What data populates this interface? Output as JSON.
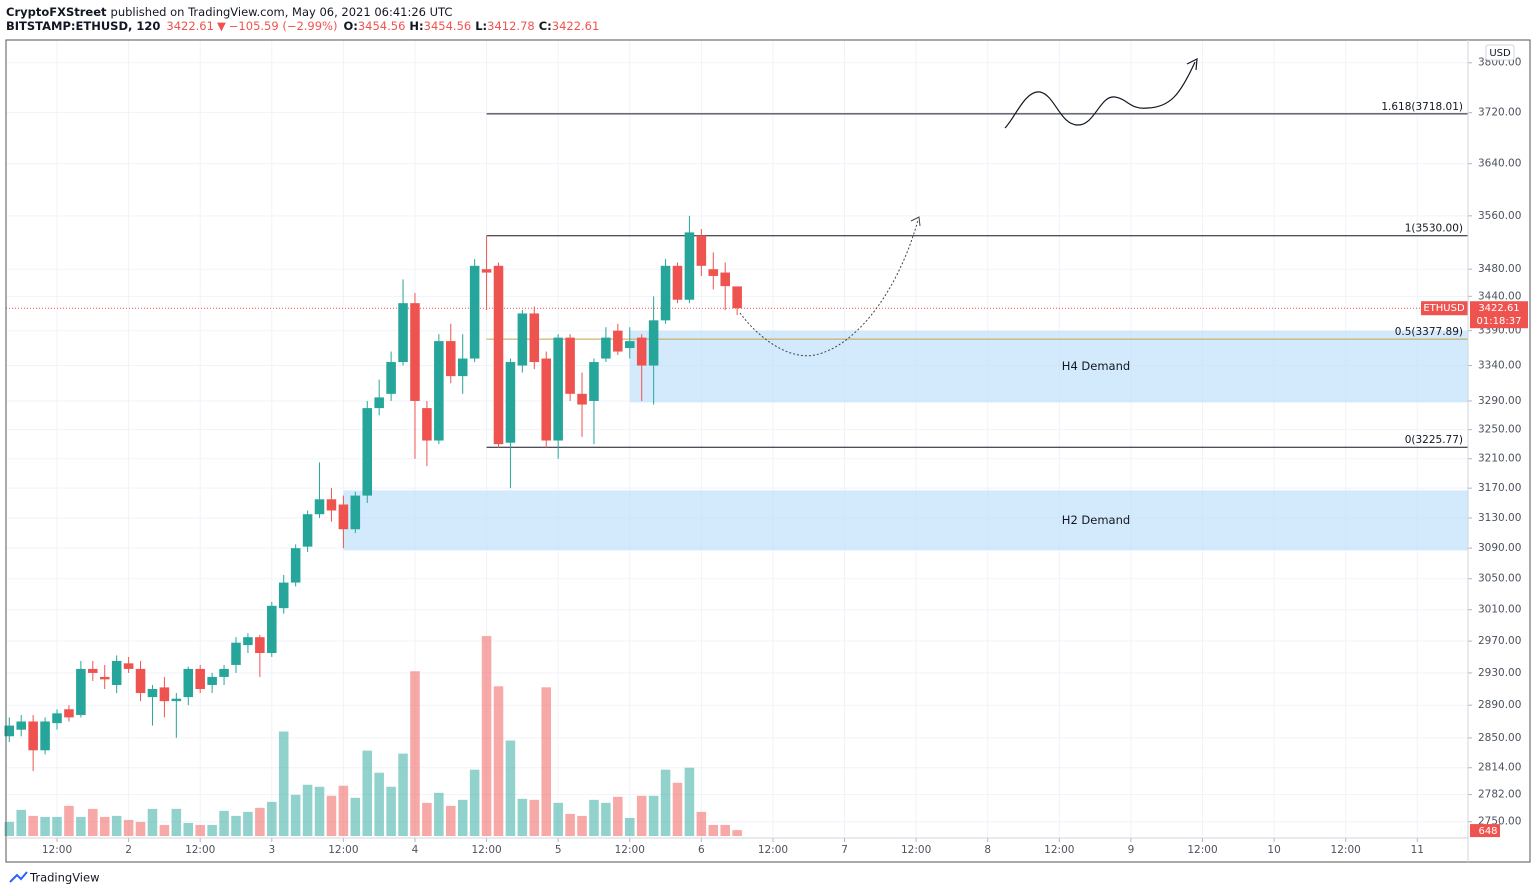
{
  "chart_data": {
    "type": "candlestick",
    "header": {
      "publisher": "CryptoFXStreet",
      "published": "published on TradingView.com, May 06, 2021 06:41:26 UTC",
      "symbol": "BITSTAMP:ETHUSD, 120",
      "last": 3422.61,
      "arrow": "▼",
      "change": "−105.59 (−2.99%)",
      "o_label": "O:",
      "open": 3454.56,
      "h_label": "H:",
      "high": 3454.56,
      "l_label": "L:",
      "low": 3412.78,
      "c_label": "C:",
      "close": 3422.61
    },
    "currency": "USD",
    "footer": "TradingView",
    "up_color": "#26a69a",
    "down_color": "#ef5350",
    "log_scale": true,
    "grid": true,
    "x": [
      4,
      6,
      8,
      10,
      12,
      14,
      16,
      18,
      20,
      22,
      24,
      26,
      28,
      30,
      32,
      34,
      36,
      38,
      40,
      42,
      44,
      46,
      48,
      50,
      52,
      54,
      56,
      58,
      60,
      62,
      64,
      66,
      68,
      70,
      72,
      74,
      76,
      78,
      80,
      82,
      84,
      86,
      88,
      90,
      92,
      94,
      96,
      98,
      100,
      102,
      104,
      106,
      108,
      110,
      112,
      114,
      116,
      118,
      120,
      122,
      124,
      126
    ],
    "open": [
      2852,
      2860,
      2870,
      2835,
      2868,
      2885,
      2878,
      2935,
      2925,
      2915,
      2942,
      2935,
      2900,
      2912,
      2895,
      2900,
      2935,
      2915,
      2925,
      2940,
      2965,
      2975,
      2955,
      3012,
      3045,
      3092,
      3135,
      3155,
      3148,
      3115,
      3160,
      3280,
      3300,
      3345,
      3430,
      3280,
      3235,
      3375,
      3325,
      3350,
      3480,
      3485,
      3232,
      3340,
      3415,
      3350,
      3235,
      3380,
      3300,
      3290,
      3350,
      3390,
      3365,
      3380,
      3340,
      3405,
      3485,
      3435,
      3530,
      3480,
      3475,
      3454.56
    ],
    "high": [
      2875,
      2878,
      2878,
      2875,
      2885,
      2890,
      2945,
      2945,
      2940,
      2952,
      2950,
      2945,
      2915,
      2925,
      2905,
      2938,
      2940,
      2930,
      2940,
      2975,
      2980,
      2978,
      3020,
      3055,
      3095,
      3140,
      3205,
      3170,
      3160,
      3165,
      3290,
      3320,
      3360,
      3465,
      3445,
      3290,
      3385,
      3400,
      3385,
      3495,
      3530,
      3490,
      3350,
      3420,
      3425,
      3360,
      3385,
      3385,
      3330,
      3350,
      3395,
      3400,
      3395,
      3385,
      3440,
      3495,
      3490,
      3560,
      3540,
      3505,
      3490,
      3454.56
    ],
    "low": [
      2845,
      2852,
      2810,
      2830,
      2860,
      2870,
      2875,
      2920,
      2910,
      2905,
      2930,
      2895,
      2865,
      2875,
      2850,
      2890,
      2905,
      2905,
      2915,
      2930,
      2955,
      2925,
      2950,
      3005,
      3040,
      3085,
      3130,
      3125,
      3090,
      3110,
      3150,
      3270,
      3290,
      3340,
      3210,
      3200,
      3230,
      3315,
      3300,
      3345,
      3420,
      3225,
      3170,
      3330,
      3335,
      3225,
      3210,
      3290,
      3240,
      3230,
      3345,
      3355,
      3350,
      3290,
      3285,
      3400,
      3430,
      3430,
      3470,
      3450,
      3420,
      3412.78
    ],
    "close": [
      2865,
      2870,
      2835,
      2870,
      2880,
      2875,
      2935,
      2930,
      2922,
      2945,
      2935,
      2905,
      2910,
      2895,
      2898,
      2935,
      2910,
      2925,
      2935,
      2968,
      2975,
      2955,
      3015,
      3045,
      3090,
      3135,
      3155,
      3140,
      3115,
      3160,
      3280,
      3295,
      3345,
      3430,
      3290,
      3235,
      3375,
      3325,
      3350,
      3485,
      3475,
      3230,
      3345,
      3415,
      3345,
      3235,
      3380,
      3300,
      3285,
      3345,
      3380,
      3360,
      3375,
      3340,
      3405,
      3485,
      3435,
      3535,
      3485,
      3470,
      3455,
      3422.61
    ],
    "volume": [
      1540,
      2860,
      2200,
      2090,
      2090,
      3300,
      2090,
      2970,
      2090,
      2200,
      1760,
      1540,
      2970,
      1210,
      2970,
      1430,
      1210,
      1210,
      2750,
      2200,
      2640,
      3080,
      3740,
      11440,
      4510,
      5610,
      5390,
      4400,
      5500,
      4180,
      9350,
      6930,
      5390,
      9020,
      18040,
      3630,
      4730,
      3300,
      3960,
      7260,
      21890,
      16390,
      10450,
      4070,
      3960,
      16280,
      3630,
      2420,
      2200,
      3960,
      3630,
      4290,
      1980,
      4400,
      4400,
      7260,
      5830,
      7480,
      2640,
      1210,
      1210,
      648
    ],
    "vlim": [
      0,
      30000
    ],
    "xlim": [
      3.45,
      248.5
    ],
    "xticks": [
      {
        "value": 12,
        "label": "12:00"
      },
      {
        "value": 24,
        "label": "2"
      },
      {
        "value": 36,
        "label": "12:00"
      },
      {
        "value": 48,
        "label": "3"
      },
      {
        "value": 60,
        "label": "12:00"
      },
      {
        "value": 72,
        "label": "4"
      },
      {
        "value": 84,
        "label": "12:00"
      },
      {
        "value": 96,
        "label": "5"
      },
      {
        "value": 108,
        "label": "12:00"
      },
      {
        "value": 120,
        "label": "6"
      },
      {
        "value": 132,
        "label": "12:00"
      },
      {
        "value": 144,
        "label": "7"
      },
      {
        "value": 156,
        "label": "12:00"
      },
      {
        "value": 168,
        "label": "8"
      },
      {
        "value": 180,
        "label": "12:00"
      },
      {
        "value": 192,
        "label": "9"
      },
      {
        "value": 204,
        "label": "12:00"
      },
      {
        "value": 216,
        "label": "10"
      },
      {
        "value": 228,
        "label": "12:00"
      },
      {
        "value": 240,
        "label": "11"
      }
    ],
    "ylim": [
      2731,
      3837
    ],
    "yticks": [
      {
        "value": 3800,
        "label": "3800.00"
      },
      {
        "value": 3720,
        "label": "3720.00"
      },
      {
        "value": 3640,
        "label": "3640.00"
      },
      {
        "value": 3560,
        "label": "3560.00"
      },
      {
        "value": 3480,
        "label": "3480.00"
      },
      {
        "value": 3440,
        "label": "3440.00"
      },
      {
        "value": 3390,
        "label": "3390.00"
      },
      {
        "value": 3340,
        "label": "3340.00"
      },
      {
        "value": 3290,
        "label": "3290.00"
      },
      {
        "value": 3250,
        "label": "3250.00"
      },
      {
        "value": 3210,
        "label": "3210.00"
      },
      {
        "value": 3170,
        "label": "3170.00"
      },
      {
        "value": 3130,
        "label": "3130.00"
      },
      {
        "value": 3090,
        "label": "3090.00"
      },
      {
        "value": 3050,
        "label": "3050.00"
      },
      {
        "value": 3010,
        "label": "3010.00"
      },
      {
        "value": 2970,
        "label": "2970.00"
      },
      {
        "value": 2930,
        "label": "2930.00"
      },
      {
        "value": 2890,
        "label": "2890.00"
      },
      {
        "value": 2850,
        "label": "2850.00"
      },
      {
        "value": 2814,
        "label": "2814.00"
      },
      {
        "value": 2782,
        "label": "2782.00"
      },
      {
        "value": 2750,
        "label": "2750.00"
      }
    ],
    "fib_levels": [
      {
        "label": "1.618(3718.01)",
        "value": 3718.01,
        "start": 84,
        "color": "#131722"
      },
      {
        "label": "1(3530.00)",
        "value": 3530.0,
        "start": 84,
        "color": "#131722"
      },
      {
        "label": "0.5(3377.89)",
        "value": 3377.89,
        "start": 84,
        "color": "#c8a24a"
      },
      {
        "label": "0(3225.77)",
        "value": 3225.77,
        "start": 84,
        "color": "#131722"
      }
    ],
    "zones": [
      {
        "label": "H4 Demand",
        "high": 3390,
        "low": 3288,
        "start": 108,
        "color": "#bbdefb"
      },
      {
        "label": "H2 Demand",
        "high": 3167,
        "low": 3087,
        "start": 60,
        "color": "#bbdefb"
      }
    ],
    "price_tag": {
      "symbol": "ETHUSD",
      "value": 3422.61,
      "countdown": "01:18:37"
    }
  }
}
